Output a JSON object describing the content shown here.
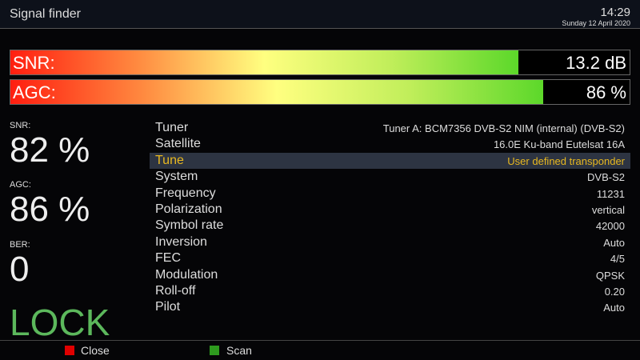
{
  "header": {
    "title": "Signal finder",
    "time": "14:29",
    "date": "Sunday 12 April 2020"
  },
  "bars": [
    {
      "label": "SNR:",
      "value": "13.2 dB",
      "fill_percent": 82
    },
    {
      "label": "AGC:",
      "value": "86 %",
      "fill_percent": 86
    }
  ],
  "stats": [
    {
      "label": "SNR:",
      "value": "82 %"
    },
    {
      "label": "AGC:",
      "value": "86 %"
    },
    {
      "label": "BER:",
      "value": "0"
    }
  ],
  "lock_status": "LOCK",
  "details": [
    {
      "key": "Tuner",
      "value": "Tuner A: BCM7356 DVB-S2 NIM (internal) (DVB-S2)"
    },
    {
      "key": "Satellite",
      "value": "16.0E Ku-band Eutelsat 16A"
    },
    {
      "key": "Tune",
      "value": "User defined transponder",
      "selected": true
    },
    {
      "key": "System",
      "value": "DVB-S2"
    },
    {
      "key": "Frequency",
      "value": "11231"
    },
    {
      "key": "Polarization",
      "value": "vertical"
    },
    {
      "key": "Symbol rate",
      "value": "42000"
    },
    {
      "key": "Inversion",
      "value": "Auto"
    },
    {
      "key": "FEC",
      "value": "4/5"
    },
    {
      "key": "Modulation",
      "value": "QPSK"
    },
    {
      "key": "Roll-off",
      "value": "0.20"
    },
    {
      "key": "Pilot",
      "value": "Auto"
    }
  ],
  "footer": {
    "red_label": "Close",
    "green_label": "Scan",
    "red_color": "#e00000",
    "green_color": "#2e9a1e"
  }
}
